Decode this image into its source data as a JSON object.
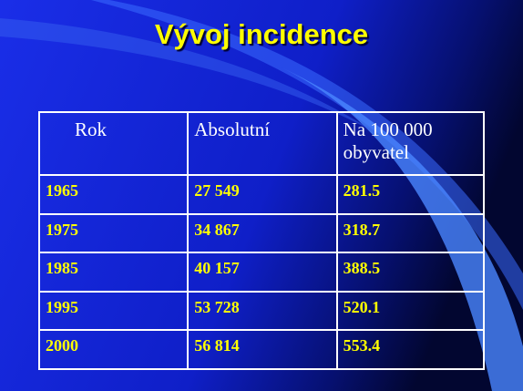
{
  "header": {
    "title": "Vývoj incidence"
  },
  "table": {
    "header": [
      "Rok",
      "Absolutní",
      "Na 100 000 obyvatel"
    ],
    "rows": [
      [
        "1965",
        "27 549",
        "281.5"
      ],
      [
        "1975",
        "34 867",
        "318.7"
      ],
      [
        "1985",
        "40 157",
        "388.5"
      ],
      [
        "1995",
        "53 728",
        "520.1"
      ],
      [
        "2000",
        "56 814",
        "553.4"
      ]
    ]
  }
}
